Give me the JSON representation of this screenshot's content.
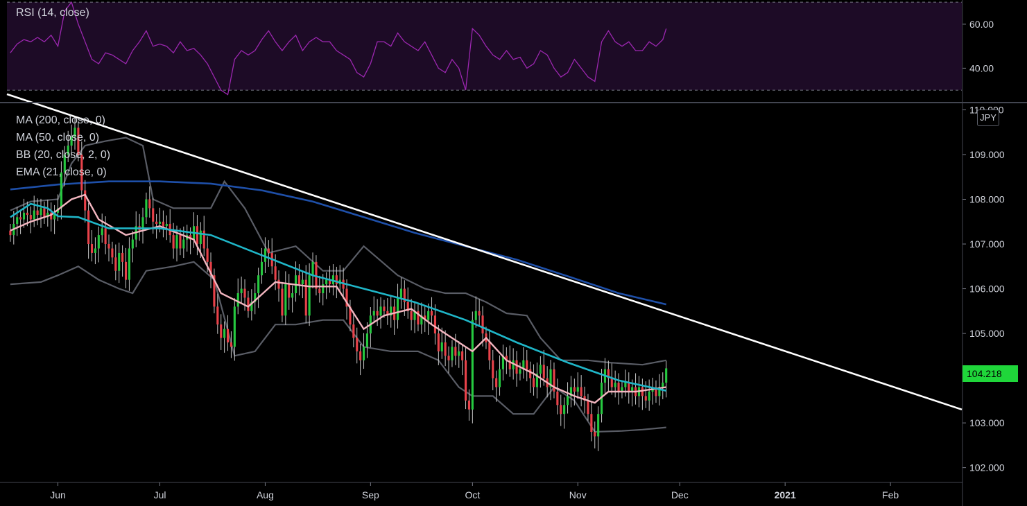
{
  "colors": {
    "background": "#000000",
    "rsi_line": "#9c27b0",
    "rsi_band_fill": "#1d0b26",
    "ma200": "#1e4fa8",
    "ma50": "#1fb6c8",
    "ema21": "#f3b6c0",
    "bollinger": "#5a5d66",
    "trendline": "#ffffff",
    "up_candle": "#26c940",
    "down_candle": "#e8424a",
    "price_tag": "#1fd63a"
  },
  "rsi_legend": "RSI (14, close)",
  "main_legend": [
    "MA (200, close, 0)",
    "MA (50, close, 0)",
    "BB (20, close, 2, 0)",
    "EMA (21, close, 0)"
  ],
  "currency": "JPY",
  "last_price": "104.218",
  "chart_data": {
    "type": "candlestick",
    "series_names": [
      "MA (200, close, 0)",
      "MA (50, close, 0)",
      "BB (20, close, 2, 0)",
      "EMA (21, close, 0)"
    ],
    "x_ticks": [
      "Jun",
      "Jul",
      "Aug",
      "Sep",
      "Oct",
      "Nov",
      "Dec",
      "2021",
      "Feb"
    ],
    "x_tick_day": [
      0,
      30,
      61,
      92,
      122,
      153,
      183,
      214,
      245
    ],
    "x_range_days": [
      -15,
      266
    ],
    "price_ticks": [
      "110.000",
      "109.000",
      "108.000",
      "107.000",
      "106.000",
      "105.000",
      "104.000",
      "103.000",
      "102.000"
    ],
    "price_range": [
      101.7,
      110.1
    ],
    "rsi_ticks": [
      "60.00",
      "40.00"
    ],
    "rsi_range": [
      25,
      71
    ],
    "rsi_bands": [
      70,
      30
    ],
    "closes": [
      [
        -14,
        107.2
      ],
      [
        -13,
        107.45
      ],
      [
        -12,
        107.6
      ],
      [
        -11,
        107.55
      ],
      [
        -10,
        107.7
      ],
      [
        -9,
        107.65
      ],
      [
        -8,
        107.55
      ],
      [
        -7,
        107.75
      ],
      [
        -6,
        107.65
      ],
      [
        -5,
        107.8
      ],
      [
        -4,
        107.6
      ],
      [
        -3,
        107.7
      ],
      [
        -2,
        107.55
      ],
      [
        -1,
        107.7
      ],
      [
        0,
        107.8
      ],
      [
        1,
        108.6
      ],
      [
        2,
        109.0
      ],
      [
        3,
        109.2
      ],
      [
        4,
        109.4
      ],
      [
        5,
        109.6
      ],
      [
        6,
        109.0
      ],
      [
        7,
        108.2
      ],
      [
        8,
        107.75
      ],
      [
        9,
        107.0
      ],
      [
        10,
        106.8
      ],
      [
        11,
        106.9
      ],
      [
        12,
        107.2
      ],
      [
        13,
        107.35
      ],
      [
        14,
        107.0
      ],
      [
        15,
        106.9
      ],
      [
        16,
        106.7
      ],
      [
        17,
        106.4
      ],
      [
        18,
        106.8
      ],
      [
        19,
        106.6
      ],
      [
        20,
        106.2
      ],
      [
        21,
        106.9
      ],
      [
        22,
        107.1
      ],
      [
        23,
        107.4
      ],
      [
        24,
        107.3
      ],
      [
        25,
        107.6
      ],
      [
        26,
        108.0
      ],
      [
        27,
        107.8
      ],
      [
        28,
        107.5
      ],
      [
        29,
        107.45
      ],
      [
        30,
        107.5
      ],
      [
        31,
        107.4
      ],
      [
        32,
        107.45
      ],
      [
        33,
        107.2
      ],
      [
        34,
        106.9
      ],
      [
        35,
        107.2
      ],
      [
        36,
        106.9
      ],
      [
        37,
        107.1
      ],
      [
        38,
        107.2
      ],
      [
        39,
        107.1
      ],
      [
        40,
        107.4
      ],
      [
        41,
        107.0
      ],
      [
        42,
        107.3
      ],
      [
        43,
        106.9
      ],
      [
        44,
        106.6
      ],
      [
        45,
        106.3
      ],
      [
        46,
        105.6
      ],
      [
        47,
        105.2
      ],
      [
        48,
        104.9
      ],
      [
        49,
        105.1
      ],
      [
        50,
        104.8
      ],
      [
        51,
        104.7
      ],
      [
        52,
        105.6
      ],
      [
        53,
        105.9
      ],
      [
        54,
        106.0
      ],
      [
        55,
        105.8
      ],
      [
        56,
        105.5
      ],
      [
        57,
        105.7
      ],
      [
        58,
        105.9
      ],
      [
        59,
        106.3
      ],
      [
        60,
        106.6
      ],
      [
        61,
        106.9
      ],
      [
        62,
        106.8
      ],
      [
        63,
        106.5
      ],
      [
        64,
        106.2
      ],
      [
        65,
        106.0
      ],
      [
        66,
        105.4
      ],
      [
        67,
        106.1
      ],
      [
        68,
        105.8
      ],
      [
        69,
        105.9
      ],
      [
        70,
        106.3
      ],
      [
        71,
        106.1
      ],
      [
        72,
        106.2
      ],
      [
        73,
        105.4
      ],
      [
        74,
        106.3
      ],
      [
        75,
        106.6
      ],
      [
        76,
        106.0
      ],
      [
        77,
        105.9
      ],
      [
        78,
        106.1
      ],
      [
        79,
        106.2
      ],
      [
        80,
        106.1
      ],
      [
        81,
        106.3
      ],
      [
        82,
        106.1
      ],
      [
        83,
        106.2
      ],
      [
        84,
        106.0
      ],
      [
        85,
        105.6
      ],
      [
        86,
        105.2
      ],
      [
        87,
        104.9
      ],
      [
        88,
        104.6
      ],
      [
        89,
        104.4
      ],
      [
        90,
        104.7
      ],
      [
        91,
        105.0
      ],
      [
        92,
        105.4
      ],
      [
        93,
        105.5
      ],
      [
        94,
        105.4
      ],
      [
        95,
        105.6
      ],
      [
        96,
        105.5
      ],
      [
        97,
        105.4
      ],
      [
        98,
        105.6
      ],
      [
        99,
        105.3
      ],
      [
        100,
        105.8
      ],
      [
        101,
        106.0
      ],
      [
        102,
        105.7
      ],
      [
        103,
        105.5
      ],
      [
        104,
        105.3
      ],
      [
        105,
        105.5
      ],
      [
        106,
        105.2
      ],
      [
        107,
        105.4
      ],
      [
        108,
        105.3
      ],
      [
        109,
        105.5
      ],
      [
        110,
        105.4
      ],
      [
        111,
        105.0
      ],
      [
        112,
        104.6
      ],
      [
        113,
        104.8
      ],
      [
        114,
        104.5
      ],
      [
        115,
        104.4
      ],
      [
        116,
        104.7
      ],
      [
        117,
        104.5
      ],
      [
        118,
        104.6
      ],
      [
        119,
        104.4
      ],
      [
        120,
        103.5
      ],
      [
        121,
        103.3
      ],
      [
        122,
        105.3
      ],
      [
        123,
        105.5
      ],
      [
        124,
        105.4
      ],
      [
        125,
        105.0
      ],
      [
        126,
        104.8
      ],
      [
        127,
        104.4
      ],
      [
        128,
        104.0
      ],
      [
        129,
        103.8
      ],
      [
        130,
        104.2
      ],
      [
        131,
        104.5
      ],
      [
        132,
        104.4
      ],
      [
        133,
        104.2
      ],
      [
        134,
        104.4
      ],
      [
        135,
        104.1
      ],
      [
        136,
        104.2
      ],
      [
        137,
        104.4
      ],
      [
        138,
        104.2
      ],
      [
        139,
        104.0
      ],
      [
        140,
        103.8
      ],
      [
        141,
        104.1
      ],
      [
        142,
        104.3
      ],
      [
        143,
        104.0
      ],
      [
        144,
        103.8
      ],
      [
        145,
        104.2
      ],
      [
        146,
        103.7
      ],
      [
        147,
        103.4
      ],
      [
        148,
        103.2
      ],
      [
        149,
        103.4
      ],
      [
        150,
        103.6
      ],
      [
        151,
        103.8
      ],
      [
        152,
        103.7
      ],
      [
        153,
        103.8
      ],
      [
        154,
        103.6
      ],
      [
        155,
        103.5
      ],
      [
        156,
        103.2
      ],
      [
        157,
        102.8
      ],
      [
        158,
        102.7
      ],
      [
        159,
        103.2
      ],
      [
        160,
        103.9
      ],
      [
        161,
        104.2
      ],
      [
        162,
        104.0
      ],
      [
        163,
        103.8
      ],
      [
        164,
        103.9
      ],
      [
        165,
        103.7
      ],
      [
        166,
        103.8
      ],
      [
        167,
        103.9
      ],
      [
        168,
        103.7
      ],
      [
        169,
        103.8
      ],
      [
        170,
        103.6
      ],
      [
        171,
        103.8
      ],
      [
        172,
        103.6
      ],
      [
        173,
        103.5
      ],
      [
        174,
        103.7
      ],
      [
        175,
        103.8
      ],
      [
        176,
        103.6
      ],
      [
        177,
        103.8
      ],
      [
        178,
        103.9
      ],
      [
        179,
        104.22
      ]
    ],
    "rsi": [
      [
        -14,
        47
      ],
      [
        -12,
        51
      ],
      [
        -10,
        53
      ],
      [
        -8,
        52
      ],
      [
        -6,
        54
      ],
      [
        -4,
        52
      ],
      [
        -2,
        55
      ],
      [
        0,
        50
      ],
      [
        2,
        66
      ],
      [
        4,
        70
      ],
      [
        6,
        60
      ],
      [
        8,
        52
      ],
      [
        10,
        44
      ],
      [
        12,
        42
      ],
      [
        14,
        47
      ],
      [
        16,
        46
      ],
      [
        18,
        44
      ],
      [
        20,
        42
      ],
      [
        22,
        48
      ],
      [
        24,
        52
      ],
      [
        26,
        57
      ],
      [
        28,
        50
      ],
      [
        30,
        51
      ],
      [
        32,
        50
      ],
      [
        34,
        47
      ],
      [
        36,
        52
      ],
      [
        38,
        48
      ],
      [
        40,
        49
      ],
      [
        42,
        46
      ],
      [
        44,
        42
      ],
      [
        46,
        36
      ],
      [
        48,
        30
      ],
      [
        50,
        28
      ],
      [
        52,
        44
      ],
      [
        54,
        48
      ],
      [
        56,
        46
      ],
      [
        58,
        48
      ],
      [
        60,
        53
      ],
      [
        62,
        57
      ],
      [
        64,
        52
      ],
      [
        66,
        48
      ],
      [
        68,
        52
      ],
      [
        70,
        55
      ],
      [
        72,
        48
      ],
      [
        74,
        52
      ],
      [
        76,
        54
      ],
      [
        78,
        52
      ],
      [
        80,
        52
      ],
      [
        82,
        48
      ],
      [
        84,
        46
      ],
      [
        86,
        44
      ],
      [
        88,
        38
      ],
      [
        90,
        36
      ],
      [
        92,
        42
      ],
      [
        94,
        52
      ],
      [
        96,
        52
      ],
      [
        98,
        50
      ],
      [
        100,
        56
      ],
      [
        102,
        52
      ],
      [
        104,
        50
      ],
      [
        106,
        48
      ],
      [
        108,
        52
      ],
      [
        110,
        46
      ],
      [
        112,
        40
      ],
      [
        114,
        38
      ],
      [
        116,
        44
      ],
      [
        118,
        40
      ],
      [
        120,
        30
      ],
      [
        122,
        58
      ],
      [
        124,
        55
      ],
      [
        126,
        50
      ],
      [
        128,
        46
      ],
      [
        130,
        44
      ],
      [
        132,
        48
      ],
      [
        134,
        44
      ],
      [
        136,
        45
      ],
      [
        138,
        40
      ],
      [
        140,
        42
      ],
      [
        142,
        48
      ],
      [
        144,
        46
      ],
      [
        146,
        40
      ],
      [
        148,
        36
      ],
      [
        150,
        38
      ],
      [
        152,
        44
      ],
      [
        154,
        40
      ],
      [
        156,
        36
      ],
      [
        158,
        34
      ],
      [
        160,
        52
      ],
      [
        162,
        57
      ],
      [
        164,
        52
      ],
      [
        166,
        50
      ],
      [
        168,
        52
      ],
      [
        170,
        48
      ],
      [
        172,
        48
      ],
      [
        174,
        52
      ],
      [
        176,
        50
      ],
      [
        178,
        53
      ],
      [
        179,
        58
      ]
    ],
    "ma200": [
      [
        -14,
        108.22
      ],
      [
        0,
        108.33
      ],
      [
        15,
        108.4
      ],
      [
        30,
        108.4
      ],
      [
        45,
        108.35
      ],
      [
        60,
        108.2
      ],
      [
        75,
        107.95
      ],
      [
        90,
        107.6
      ],
      [
        105,
        107.25
      ],
      [
        120,
        106.95
      ],
      [
        135,
        106.65
      ],
      [
        150,
        106.28
      ],
      [
        165,
        105.9
      ],
      [
        179,
        105.65
      ]
    ],
    "ma50": [
      [
        -14,
        107.6
      ],
      [
        -8,
        107.9
      ],
      [
        -3,
        107.8
      ],
      [
        0,
        107.62
      ],
      [
        6,
        107.6
      ],
      [
        15,
        107.35
      ],
      [
        30,
        107.35
      ],
      [
        45,
        107.2
      ],
      [
        60,
        106.75
      ],
      [
        75,
        106.3
      ],
      [
        90,
        106.0
      ],
      [
        105,
        105.7
      ],
      [
        120,
        105.3
      ],
      [
        135,
        104.8
      ],
      [
        150,
        104.35
      ],
      [
        165,
        103.95
      ],
      [
        179,
        103.72
      ]
    ],
    "ema21": [
      [
        -14,
        107.3
      ],
      [
        -8,
        107.5
      ],
      [
        -2,
        107.65
      ],
      [
        4,
        108.0
      ],
      [
        8,
        108.1
      ],
      [
        12,
        107.55
      ],
      [
        20,
        107.2
      ],
      [
        30,
        107.4
      ],
      [
        40,
        107.1
      ],
      [
        48,
        105.9
      ],
      [
        56,
        105.6
      ],
      [
        64,
        106.15
      ],
      [
        74,
        106.05
      ],
      [
        82,
        106.05
      ],
      [
        90,
        105.1
      ],
      [
        96,
        105.4
      ],
      [
        104,
        105.55
      ],
      [
        110,
        105.2
      ],
      [
        118,
        104.8
      ],
      [
        122,
        104.6
      ],
      [
        126,
        104.9
      ],
      [
        132,
        104.4
      ],
      [
        140,
        104.1
      ],
      [
        146,
        103.8
      ],
      [
        152,
        103.6
      ],
      [
        158,
        103.45
      ],
      [
        162,
        103.7
      ],
      [
        170,
        103.7
      ],
      [
        179,
        103.8
      ]
    ],
    "bb_upper": [
      [
        -14,
        107.75
      ],
      [
        -8,
        107.95
      ],
      [
        0,
        108.0
      ],
      [
        4,
        108.8
      ],
      [
        8,
        109.2
      ],
      [
        14,
        109.3
      ],
      [
        20,
        109.38
      ],
      [
        25,
        109.2
      ],
      [
        28,
        108.0
      ],
      [
        34,
        107.8
      ],
      [
        45,
        107.8
      ],
      [
        49,
        108.4
      ],
      [
        55,
        107.8
      ],
      [
        62,
        106.8
      ],
      [
        70,
        106.95
      ],
      [
        78,
        106.4
      ],
      [
        84,
        106.4
      ],
      [
        90,
        106.95
      ],
      [
        100,
        106.3
      ],
      [
        108,
        106.0
      ],
      [
        114,
        105.9
      ],
      [
        120,
        105.9
      ],
      [
        126,
        105.7
      ],
      [
        132,
        105.45
      ],
      [
        138,
        105.4
      ],
      [
        142,
        104.9
      ],
      [
        148,
        104.4
      ],
      [
        156,
        104.4
      ],
      [
        162,
        104.35
      ],
      [
        172,
        104.3
      ],
      [
        179,
        104.4
      ]
    ],
    "bb_lower": [
      [
        -14,
        106.1
      ],
      [
        -5,
        106.15
      ],
      [
        0,
        106.3
      ],
      [
        6,
        106.5
      ],
      [
        12,
        106.2
      ],
      [
        18,
        106.0
      ],
      [
        22,
        105.9
      ],
      [
        26,
        106.4
      ],
      [
        34,
        106.5
      ],
      [
        40,
        106.6
      ],
      [
        46,
        106.2
      ],
      [
        52,
        104.5
      ],
      [
        58,
        104.6
      ],
      [
        64,
        105.2
      ],
      [
        70,
        105.2
      ],
      [
        78,
        105.3
      ],
      [
        84,
        105.3
      ],
      [
        90,
        104.7
      ],
      [
        98,
        104.6
      ],
      [
        106,
        104.6
      ],
      [
        112,
        104.4
      ],
      [
        118,
        103.8
      ],
      [
        122,
        103.6
      ],
      [
        128,
        103.6
      ],
      [
        134,
        103.2
      ],
      [
        140,
        103.2
      ],
      [
        146,
        103.8
      ],
      [
        152,
        103.5
      ],
      [
        158,
        102.8
      ],
      [
        166,
        102.82
      ],
      [
        172,
        102.85
      ],
      [
        179,
        102.9
      ]
    ],
    "trendline": [
      [
        -15,
        110.35
      ],
      [
        266,
        103.3
      ]
    ]
  }
}
